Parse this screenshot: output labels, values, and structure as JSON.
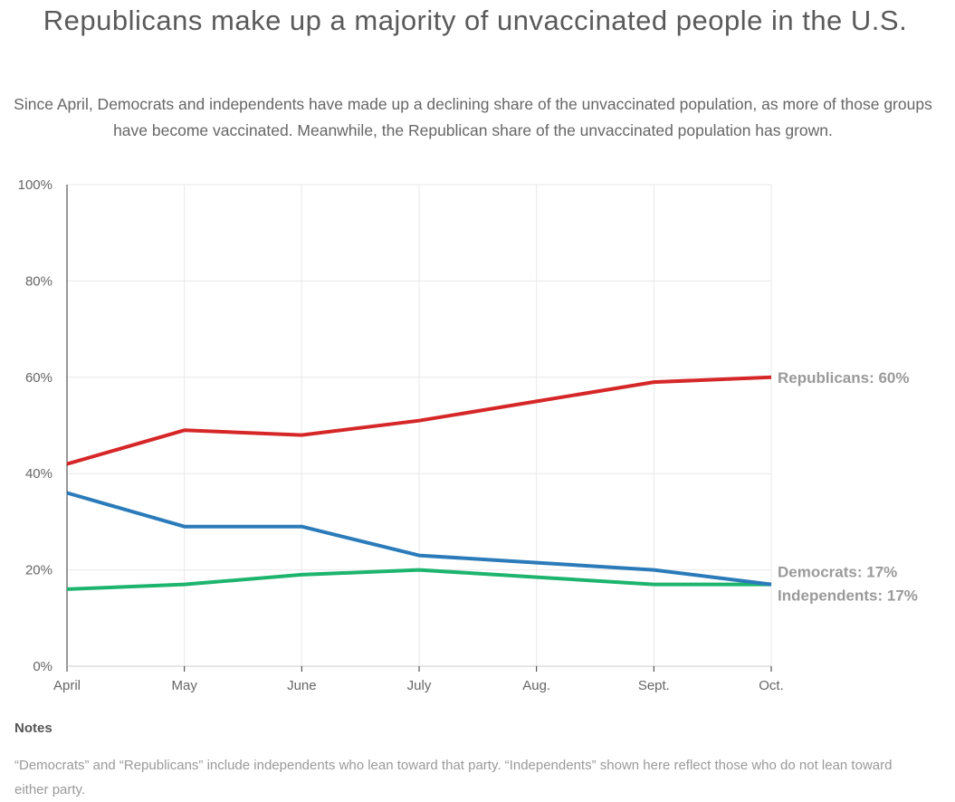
{
  "header": {
    "title": "Republicans make up a majority of unvaccinated people in the U.S.",
    "subtitle": "Since April, Democrats and independents have made up a declining share of the unvaccinated population, as more of those groups have become vaccinated. Meanwhile, the Republican share of the unvaccinated population has grown."
  },
  "chart_data": {
    "type": "line",
    "title": "Republicans make up a majority of unvaccinated people in the U.S.",
    "subtitle": "Since April, Democrats and independents have made up a declining share of the unvaccinated population, as more of those groups have become vaccinated. Meanwhile, the Republican share of the unvaccinated population has grown.",
    "x": [
      "April",
      "May",
      "June",
      "July",
      "Aug.",
      "Sept.",
      "Oct."
    ],
    "ylim": [
      0,
      100
    ],
    "yticks": [
      0,
      20,
      40,
      60,
      80,
      100
    ],
    "ytick_labels": [
      "0%",
      "20%",
      "40%",
      "60%",
      "80%",
      "100%"
    ],
    "grid": true,
    "legend": "inline end labels",
    "series": [
      {
        "name": "Republicans",
        "color": "#d62728",
        "values": [
          42,
          49,
          48,
          51,
          55,
          59,
          60
        ],
        "end_label": "Republicans: 60%"
      },
      {
        "name": "Democrats",
        "color": "#2b7bba",
        "values": [
          36,
          29,
          29,
          23,
          21.5,
          20,
          17
        ],
        "end_label": "Democrats: 17%"
      },
      {
        "name": "Independents",
        "color": "#1db46e",
        "values": [
          16,
          17,
          19,
          20,
          18.5,
          17,
          17
        ],
        "end_label": "Independents: 17%"
      }
    ]
  },
  "notes": {
    "heading": "Notes",
    "text": "“Democrats” and “Republicans” include independents who lean toward that party. “Independents” shown here reflect those who do not lean toward either party."
  }
}
